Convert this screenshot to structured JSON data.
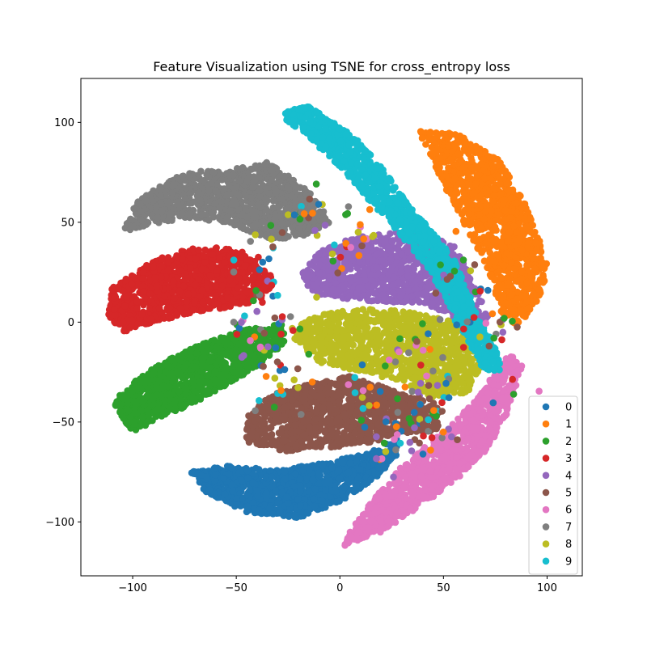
{
  "chart_data": {
    "type": "scatter",
    "title": "Feature Visualization using TSNE for cross_entropy loss",
    "xlabel": "",
    "ylabel": "",
    "xlim": [
      -125,
      117
    ],
    "ylim": [
      -127,
      122
    ],
    "xticks": [
      -100,
      -50,
      0,
      50,
      100
    ],
    "yticks": [
      100,
      50,
      0,
      -50,
      -100
    ],
    "xtick_labels": [
      "−100",
      "−50",
      "0",
      "50",
      "100"
    ],
    "ytick_labels": [
      "100",
      "50",
      "0",
      "−50",
      "−100"
    ],
    "grid": false,
    "legend_position": "lower-right",
    "series": [
      {
        "name": "0",
        "color": "#1f77b4",
        "cluster": {
          "path": [
            [
              -72,
              -75
            ],
            [
              -55,
              -72
            ],
            [
              -30,
              -74
            ],
            [
              -5,
              -70
            ],
            [
              15,
              -65
            ],
            [
              28,
              -58
            ],
            [
              27,
              -68
            ],
            [
              15,
              -80
            ],
            [
              0,
              -90
            ],
            [
              -20,
              -98
            ],
            [
              -45,
              -95
            ],
            [
              -65,
              -85
            ]
          ],
          "center": [
            -10,
            -82
          ]
        }
      },
      {
        "name": "1",
        "color": "#ff7f0e",
        "cluster": {
          "path": [
            [
              38,
              96
            ],
            [
              55,
              95
            ],
            [
              68,
              88
            ],
            [
              78,
              80
            ],
            [
              88,
              62
            ],
            [
              96,
              45
            ],
            [
              100,
              30
            ],
            [
              98,
              15
            ],
            [
              92,
              5
            ],
            [
              85,
              -2
            ],
            [
              78,
              5
            ],
            [
              72,
              25
            ],
            [
              62,
              45
            ],
            [
              52,
              65
            ],
            [
              45,
              80
            ]
          ],
          "center": [
            75,
            45
          ]
        }
      },
      {
        "name": "2",
        "color": "#2ca02c",
        "cluster": {
          "path": [
            [
              -110,
              -40
            ],
            [
              -100,
              -30
            ],
            [
              -85,
              -20
            ],
            [
              -70,
              -12
            ],
            [
              -55,
              -7
            ],
            [
              -40,
              -2
            ],
            [
              -28,
              0
            ],
            [
              -26,
              -10
            ],
            [
              -40,
              -22
            ],
            [
              -60,
              -35
            ],
            [
              -80,
              -45
            ],
            [
              -100,
              -55
            ]
          ],
          "center": [
            -70,
            -28
          ]
        }
      },
      {
        "name": "3",
        "color": "#d62728",
        "cluster": {
          "path": [
            [
              -112,
              3
            ],
            [
              -110,
              17
            ],
            [
              -95,
              28
            ],
            [
              -80,
              35
            ],
            [
              -65,
              38
            ],
            [
              -50,
              36
            ],
            [
              -40,
              30
            ],
            [
              -32,
              22
            ],
            [
              -35,
              12
            ],
            [
              -50,
              8
            ],
            [
              -70,
              5
            ],
            [
              -90,
              0
            ],
            [
              -105,
              -5
            ]
          ],
          "center": [
            -75,
            15
          ]
        }
      },
      {
        "name": "4",
        "color": "#9467bd",
        "cluster": {
          "path": [
            [
              -18,
              25
            ],
            [
              -10,
              35
            ],
            [
              5,
              42
            ],
            [
              25,
              45
            ],
            [
              42,
              44
            ],
            [
              55,
              38
            ],
            [
              62,
              25
            ],
            [
              68,
              12
            ],
            [
              72,
              2
            ],
            [
              62,
              -2
            ],
            [
              50,
              5
            ],
            [
              40,
              10
            ],
            [
              20,
              10
            ],
            [
              0,
              12
            ],
            [
              -15,
              15
            ]
          ],
          "center": [
            25,
            25
          ]
        }
      },
      {
        "name": "5",
        "color": "#8c564b",
        "cluster": {
          "path": [
            [
              -45,
              -45
            ],
            [
              -30,
              -35
            ],
            [
              -10,
              -30
            ],
            [
              5,
              -27
            ],
            [
              20,
              -32
            ],
            [
              35,
              -38
            ],
            [
              48,
              -40
            ],
            [
              48,
              -55
            ],
            [
              35,
              -55
            ],
            [
              15,
              -60
            ],
            [
              -5,
              -63
            ],
            [
              -30,
              -65
            ],
            [
              -45,
              -60
            ]
          ],
          "center": [
            0,
            -48
          ]
        }
      },
      {
        "name": "6",
        "color": "#e377c2",
        "cluster": {
          "path": [
            [
              2,
              -112
            ],
            [
              20,
              -105
            ],
            [
              35,
              -95
            ],
            [
              55,
              -80
            ],
            [
              70,
              -65
            ],
            [
              80,
              -48
            ],
            [
              85,
              -32
            ],
            [
              88,
              -22
            ],
            [
              82,
              -15
            ],
            [
              75,
              -25
            ],
            [
              65,
              -40
            ],
            [
              50,
              -55
            ],
            [
              30,
              -72
            ],
            [
              15,
              -90
            ],
            [
              5,
              -105
            ]
          ],
          "center": [
            45,
            -72
          ]
        }
      },
      {
        "name": "7",
        "color": "#7f7f7f",
        "cluster": {
          "path": [
            [
              -105,
              45
            ],
            [
              -98,
              60
            ],
            [
              -85,
              70
            ],
            [
              -70,
              76
            ],
            [
              -50,
              77
            ],
            [
              -35,
              80
            ],
            [
              -20,
              70
            ],
            [
              -10,
              60
            ],
            [
              -5,
              50
            ],
            [
              -20,
              42
            ],
            [
              -35,
              42
            ],
            [
              -55,
              50
            ],
            [
              -75,
              52
            ],
            [
              -95,
              48
            ]
          ],
          "center": [
            -55,
            60
          ]
        }
      },
      {
        "name": "8",
        "color": "#bcbd22",
        "cluster": {
          "path": [
            [
              -22,
              -8
            ],
            [
              -18,
              0
            ],
            [
              -5,
              5
            ],
            [
              15,
              7
            ],
            [
              35,
              5
            ],
            [
              55,
              0
            ],
            [
              65,
              -5
            ],
            [
              70,
              -18
            ],
            [
              62,
              -35
            ],
            [
              45,
              -38
            ],
            [
              30,
              -30
            ],
            [
              10,
              -25
            ],
            [
              -10,
              -20
            ]
          ],
          "center": [
            20,
            -10
          ]
        }
      },
      {
        "name": "9",
        "color": "#17becf",
        "cluster": {
          "path": [
            [
              -30,
              105
            ],
            [
              -15,
              108
            ],
            [
              -2,
              100
            ],
            [
              10,
              90
            ],
            [
              22,
              75
            ],
            [
              32,
              60
            ],
            [
              45,
              45
            ],
            [
              55,
              32
            ],
            [
              62,
              15
            ],
            [
              68,
              0
            ],
            [
              75,
              -12
            ],
            [
              78,
              -25
            ],
            [
              70,
              -25
            ],
            [
              62,
              -10
            ],
            [
              52,
              10
            ],
            [
              42,
              28
            ],
            [
              28,
              45
            ],
            [
              15,
              60
            ],
            [
              0,
              78
            ],
            [
              -15,
              92
            ]
          ],
          "center": [
            20,
            60
          ]
        }
      }
    ]
  }
}
